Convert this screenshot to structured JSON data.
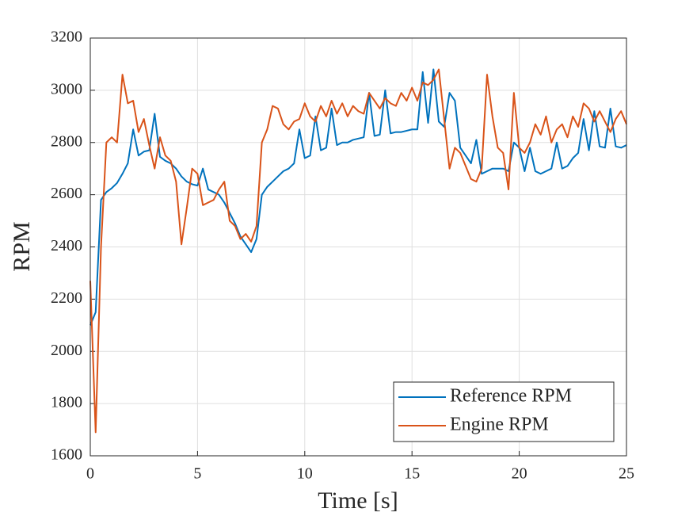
{
  "chart_data": {
    "type": "line",
    "xlabel": "Time [s]",
    "ylabel": "RPM",
    "x": [
      0,
      0.25,
      0.5,
      0.75,
      1,
      1.25,
      1.5,
      1.75,
      2,
      2.25,
      2.5,
      2.75,
      3,
      3.25,
      3.5,
      3.75,
      4,
      4.25,
      4.5,
      4.75,
      5,
      5.25,
      5.5,
      5.75,
      6,
      6.25,
      6.5,
      6.75,
      7,
      7.25,
      7.5,
      7.75,
      8,
      8.25,
      8.5,
      8.75,
      9,
      9.25,
      9.5,
      9.75,
      10,
      10.25,
      10.5,
      10.75,
      11,
      11.25,
      11.5,
      11.75,
      12,
      12.25,
      12.5,
      12.75,
      13,
      13.25,
      13.5,
      13.75,
      14,
      14.25,
      14.5,
      14.75,
      15,
      15.25,
      15.5,
      15.75,
      16,
      16.25,
      16.5,
      16.75,
      17,
      17.25,
      17.5,
      17.75,
      18,
      18.25,
      18.5,
      18.75,
      19,
      19.25,
      19.5,
      19.75,
      20,
      20.25,
      20.5,
      20.75,
      21,
      21.25,
      21.5,
      21.75,
      22,
      22.25,
      22.5,
      22.75,
      23,
      23.25,
      23.5,
      23.75,
      24,
      24.25,
      24.5,
      24.75,
      25
    ],
    "series": [
      {
        "name": "Reference RPM",
        "color": "#0072BD",
        "values": [
          2100,
          2150,
          2580,
          2610,
          2625,
          2645,
          2680,
          2720,
          2850,
          2750,
          2765,
          2770,
          2910,
          2745,
          2730,
          2720,
          2700,
          2670,
          2650,
          2640,
          2635,
          2700,
          2620,
          2610,
          2600,
          2570,
          2530,
          2490,
          2440,
          2410,
          2380,
          2430,
          2600,
          2630,
          2650,
          2670,
          2690,
          2700,
          2720,
          2850,
          2740,
          2750,
          2900,
          2770,
          2780,
          2930,
          2790,
          2800,
          2800,
          2810,
          2815,
          2820,
          2990,
          2825,
          2830,
          3000,
          2835,
          2840,
          2840,
          2845,
          2850,
          2850,
          3070,
          2875,
          3080,
          2880,
          2860,
          2990,
          2960,
          2780,
          2750,
          2720,
          2810,
          2680,
          2690,
          2700,
          2700,
          2700,
          2690,
          2800,
          2780,
          2690,
          2780,
          2690,
          2680,
          2690,
          2700,
          2800,
          2700,
          2710,
          2740,
          2760,
          2890,
          2770,
          2920,
          2785,
          2780,
          2930,
          2785,
          2780,
          2790
        ]
      },
      {
        "name": "Engine RPM",
        "color": "#D95319",
        "values": [
          2270,
          1690,
          2400,
          2800,
          2820,
          2800,
          3060,
          2950,
          2960,
          2840,
          2890,
          2790,
          2700,
          2820,
          2750,
          2730,
          2650,
          2410,
          2550,
          2700,
          2680,
          2560,
          2570,
          2580,
          2620,
          2650,
          2500,
          2480,
          2430,
          2450,
          2420,
          2480,
          2800,
          2850,
          2940,
          2930,
          2870,
          2850,
          2880,
          2890,
          2950,
          2900,
          2880,
          2940,
          2900,
          2960,
          2910,
          2950,
          2900,
          2940,
          2920,
          2910,
          2990,
          2960,
          2930,
          2970,
          2950,
          2940,
          2990,
          2960,
          3010,
          2960,
          3030,
          3020,
          3040,
          3080,
          2890,
          2700,
          2780,
          2760,
          2710,
          2660,
          2650,
          2700,
          3060,
          2900,
          2780,
          2760,
          2620,
          2990,
          2780,
          2760,
          2800,
          2870,
          2830,
          2900,
          2800,
          2850,
          2870,
          2820,
          2900,
          2860,
          2950,
          2930,
          2880,
          2920,
          2880,
          2840,
          2890,
          2920,
          2870
        ]
      }
    ],
    "xlim": [
      0,
      25
    ],
    "xticks": [
      0,
      5,
      10,
      15,
      20,
      25
    ],
    "ylim": [
      1600,
      3200
    ],
    "yticks": [
      1600,
      1800,
      2000,
      2200,
      2400,
      2600,
      2800,
      3000,
      3200
    ],
    "grid": true,
    "legend": "lower right"
  }
}
